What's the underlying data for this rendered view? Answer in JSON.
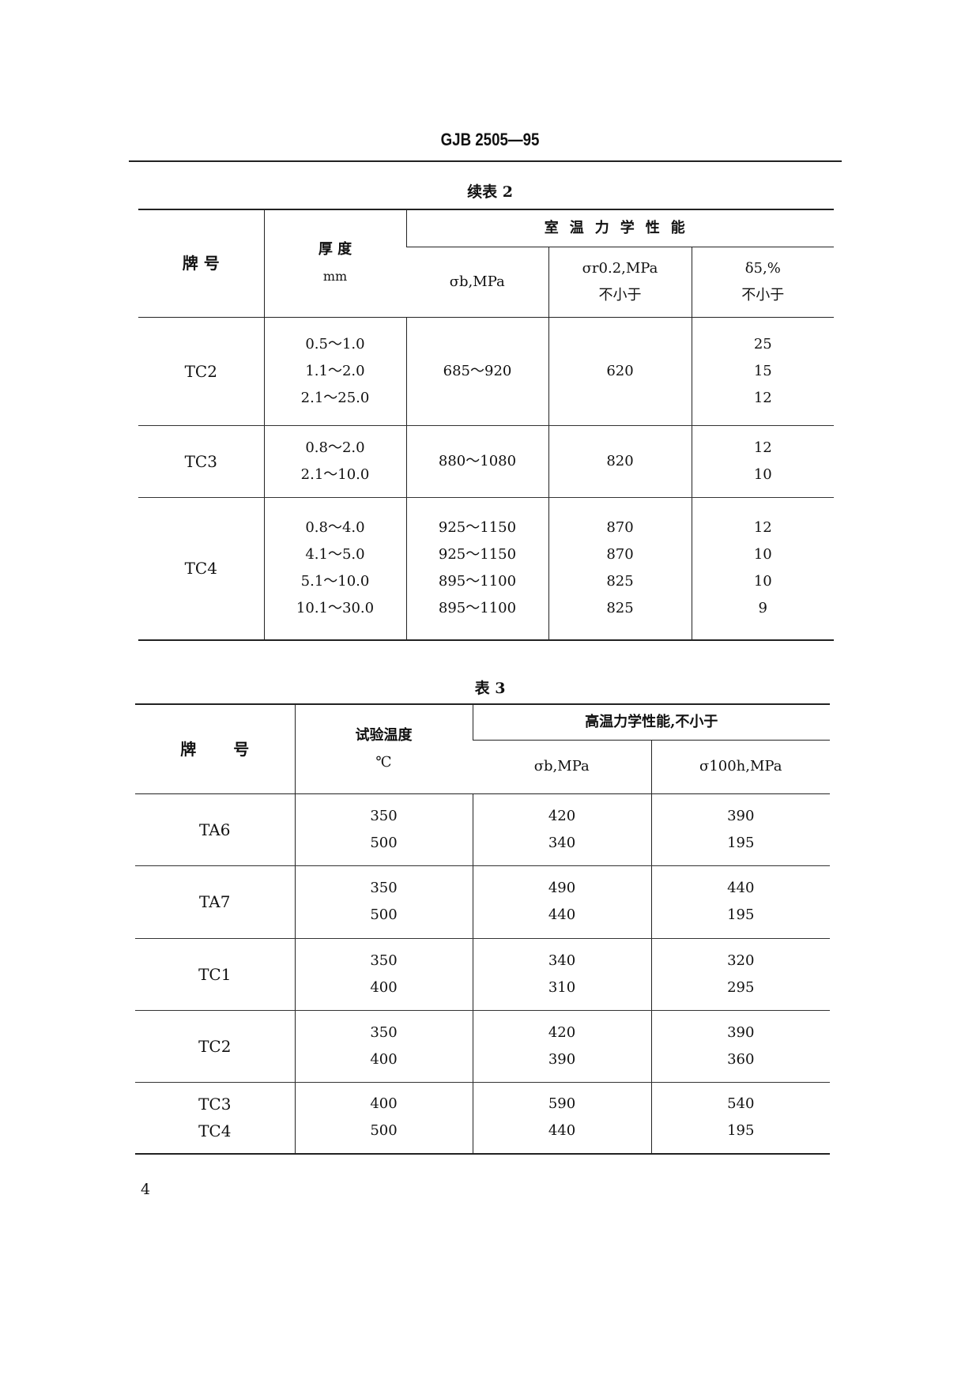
{
  "header": "GJB 2505—95",
  "page_number": "4",
  "table2": {
    "caption": "续表 2",
    "headers": {
      "grade": "牌 号",
      "thickness": "厚 度",
      "thickness_unit": "mm",
      "group": "室温力学性能",
      "sigma_b": "σb,MPa",
      "sigma_r02": "σr0.2,MPa",
      "sigma_r02_note": "不小于",
      "delta5": "δ5,%",
      "delta5_note": "不小于"
    },
    "groups": [
      {
        "grade": "TC2",
        "thickness": [
          "0.5～1.0",
          "1.1～2.0",
          "2.1～25.0"
        ],
        "sigma_b": [
          "685～920"
        ],
        "sigma_r02": [
          "620"
        ],
        "delta5": [
          "25",
          "15",
          "12"
        ]
      },
      {
        "grade": "TC3",
        "thickness": [
          "0.8～2.0",
          "2.1～10.0"
        ],
        "sigma_b": [
          "880～1080"
        ],
        "sigma_r02": [
          "820"
        ],
        "delta5": [
          "12",
          "10"
        ]
      },
      {
        "grade": "TC4",
        "thickness": [
          "0.8～4.0",
          "4.1～5.0",
          "5.1～10.0",
          "10.1～30.0"
        ],
        "sigma_b": [
          "925～1150",
          "925～1150",
          "895～1100",
          "895～1100"
        ],
        "sigma_r02": [
          "870",
          "870",
          "825",
          "825"
        ],
        "delta5": [
          "12",
          "10",
          "10",
          "9"
        ]
      }
    ]
  },
  "table3": {
    "caption": "表 3",
    "headers": {
      "grade": "牌 号",
      "temp": "试验温度",
      "temp_unit": "℃",
      "group": "高温力学性能,不小于",
      "sigma_b": "σb,MPa",
      "sigma_100h": "σ100h,MPa"
    },
    "groups": [
      {
        "grade": [
          "TA6"
        ],
        "temp": [
          "350",
          "500"
        ],
        "sigma_b": [
          "420",
          "340"
        ],
        "sigma_100h": [
          "390",
          "195"
        ]
      },
      {
        "grade": [
          "TA7"
        ],
        "temp": [
          "350",
          "500"
        ],
        "sigma_b": [
          "490",
          "440"
        ],
        "sigma_100h": [
          "440",
          "195"
        ]
      },
      {
        "grade": [
          "TC1"
        ],
        "temp": [
          "350",
          "400"
        ],
        "sigma_b": [
          "340",
          "310"
        ],
        "sigma_100h": [
          "320",
          "295"
        ]
      },
      {
        "grade": [
          "TC2"
        ],
        "temp": [
          "350",
          "400"
        ],
        "sigma_b": [
          "420",
          "390"
        ],
        "sigma_100h": [
          "390",
          "360"
        ]
      },
      {
        "grade": [
          "TC3",
          "TC4"
        ],
        "temp": [
          "400",
          "500"
        ],
        "sigma_b": [
          "590",
          "440"
        ],
        "sigma_100h": [
          "540",
          "195"
        ]
      }
    ]
  }
}
